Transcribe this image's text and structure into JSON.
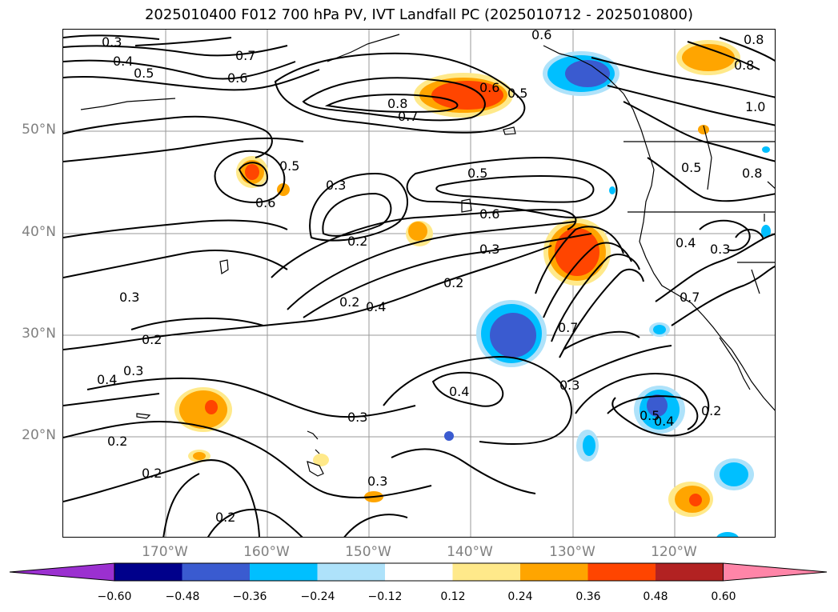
{
  "title": "2025010400 F012 700 hPa PV, IVT Landfall PC (2025010712 - 2025010800)",
  "lat_labels": [
    "50°N",
    "40°N",
    "30°N",
    "20°N"
  ],
  "lon_labels": [
    "170°W",
    "160°W",
    "150°W",
    "140°W",
    "130°W",
    "120°W"
  ],
  "contour_labels": [
    "0.3",
    "0.4",
    "0.5",
    "0.7",
    "0.6",
    "0.6",
    "0.8",
    "0.7",
    "0.6",
    "0.5",
    "0.5",
    "0.6",
    "0.3",
    "0.2",
    "0.5",
    "0.4",
    "0.3",
    "0.2",
    "0.6",
    "0.3",
    "0.2",
    "0.3",
    "0.2",
    "0.4",
    "0.3",
    "0.2",
    "0.2",
    "0.3",
    "0.2",
    "0.4",
    "0.7",
    "0.3",
    "0.5",
    "0.4",
    "0.2",
    "0.7",
    "0.4",
    "0.3",
    "0.5",
    "0.8",
    "0.8",
    "1.0",
    "0.8"
  ],
  "colorbar": {
    "ticks": [
      "−0.60",
      "−0.48",
      "−0.36",
      "−0.24",
      "−0.12",
      "0.12",
      "0.24",
      "0.36",
      "0.48",
      "0.60"
    ],
    "colors": [
      "#9b30d0",
      "#00008b",
      "#3a5bd0",
      "#00bfff",
      "#aee2fa",
      "#ffffff",
      "#ffe98a",
      "#ffa500",
      "#ff4500",
      "#b22222",
      "#ff85a8"
    ]
  }
}
